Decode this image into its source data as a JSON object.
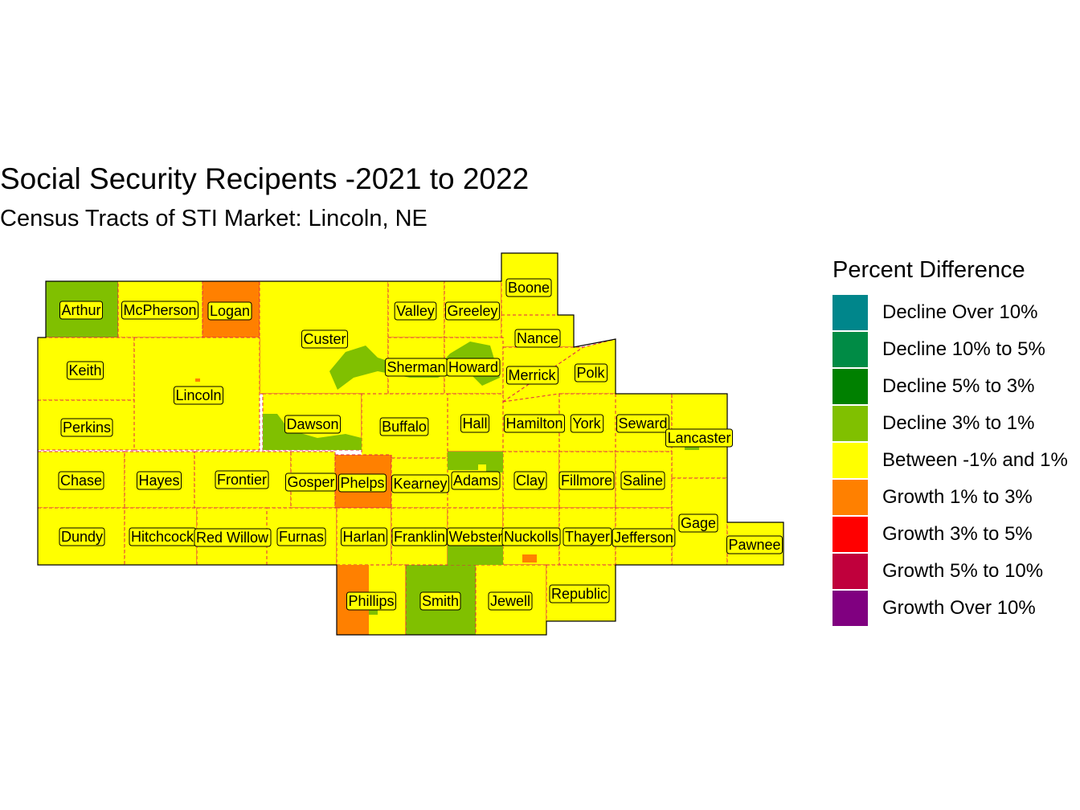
{
  "title": "Social Security Recipents -2021 to 2022",
  "subtitle": "Census Tracts of STI Market: Lincoln, NE",
  "legend": {
    "title": "Percent Difference",
    "items": [
      {
        "label": "Decline Over 10%",
        "color": "#00868b"
      },
      {
        "label": "Decline 10% to 5%",
        "color": "#008b45"
      },
      {
        "label": "Decline 5% to 3%",
        "color": "#008000"
      },
      {
        "label": "Decline 3% to 1%",
        "color": "#80c000"
      },
      {
        "label": "Between -1% and 1%",
        "color": "#ffff00"
      },
      {
        "label": "Growth 1% to 3%",
        "color": "#ff8000"
      },
      {
        "label": "Growth 3% to 5%",
        "color": "#ff0000"
      },
      {
        "label": "Growth 5% to 10%",
        "color": "#c0003c"
      },
      {
        "label": "Growth Over 10%",
        "color": "#800080"
      }
    ]
  },
  "counties": [
    {
      "name": "Arthur",
      "category": "Decline 3% to 1%"
    },
    {
      "name": "McPherson",
      "category": "Between -1% and 1%"
    },
    {
      "name": "Logan",
      "category": "Growth 1% to 3%"
    },
    {
      "name": "Custer",
      "category": "Between -1% and 1%"
    },
    {
      "name": "Valley",
      "category": "Between -1% and 1%"
    },
    {
      "name": "Greeley",
      "category": "Between -1% and 1%"
    },
    {
      "name": "Boone",
      "category": "Between -1% and 1%"
    },
    {
      "name": "Nance",
      "category": "Between -1% and 1%"
    },
    {
      "name": "Keith",
      "category": "Between -1% and 1%"
    },
    {
      "name": "Lincoln",
      "category": "Between -1% and 1%"
    },
    {
      "name": "Sherman",
      "category": "Between -1% and 1%"
    },
    {
      "name": "Howard",
      "category": "Between -1% and 1%"
    },
    {
      "name": "Merrick",
      "category": "Between -1% and 1%"
    },
    {
      "name": "Polk",
      "category": "Between -1% and 1%"
    },
    {
      "name": "Perkins",
      "category": "Between -1% and 1%"
    },
    {
      "name": "Dawson",
      "category": "Between -1% and 1%"
    },
    {
      "name": "Buffalo",
      "category": "Between -1% and 1%"
    },
    {
      "name": "Hall",
      "category": "Between -1% and 1%"
    },
    {
      "name": "Hamilton",
      "category": "Between -1% and 1%"
    },
    {
      "name": "York",
      "category": "Between -1% and 1%"
    },
    {
      "name": "Seward",
      "category": "Between -1% and 1%"
    },
    {
      "name": "Lancaster",
      "category": "Between -1% and 1%"
    },
    {
      "name": "Chase",
      "category": "Between -1% and 1%"
    },
    {
      "name": "Hayes",
      "category": "Between -1% and 1%"
    },
    {
      "name": "Frontier",
      "category": "Between -1% and 1%"
    },
    {
      "name": "Gosper",
      "category": "Between -1% and 1%"
    },
    {
      "name": "Phelps",
      "category": "Growth 1% to 3%"
    },
    {
      "name": "Kearney",
      "category": "Between -1% and 1%"
    },
    {
      "name": "Adams",
      "category": "Between -1% and 1%"
    },
    {
      "name": "Clay",
      "category": "Between -1% and 1%"
    },
    {
      "name": "Fillmore",
      "category": "Between -1% and 1%"
    },
    {
      "name": "Saline",
      "category": "Between -1% and 1%"
    },
    {
      "name": "Gage",
      "category": "Between -1% and 1%"
    },
    {
      "name": "Dundy",
      "category": "Between -1% and 1%"
    },
    {
      "name": "Hitchcock",
      "category": "Between -1% and 1%"
    },
    {
      "name": "Red Willow",
      "category": "Between -1% and 1%"
    },
    {
      "name": "Furnas",
      "category": "Between -1% and 1%"
    },
    {
      "name": "Harlan",
      "category": "Between -1% and 1%"
    },
    {
      "name": "Franklin",
      "category": "Between -1% and 1%"
    },
    {
      "name": "Webster",
      "category": "Between -1% and 1%"
    },
    {
      "name": "Nuckolls",
      "category": "Between -1% and 1%"
    },
    {
      "name": "Thayer",
      "category": "Between -1% and 1%"
    },
    {
      "name": "Jefferson",
      "category": "Between -1% and 1%"
    },
    {
      "name": "Pawnee",
      "category": "Between -1% and 1%"
    },
    {
      "name": "Phillips",
      "category": "Between -1% and 1%"
    },
    {
      "name": "Smith",
      "category": "Decline 3% to 1%"
    },
    {
      "name": "Jewell",
      "category": "Between -1% and 1%"
    },
    {
      "name": "Republic",
      "category": "Between -1% and 1%"
    }
  ]
}
